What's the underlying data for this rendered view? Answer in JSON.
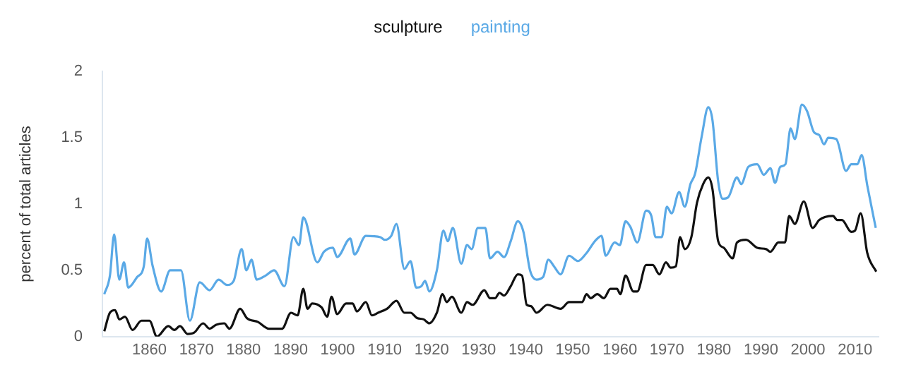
{
  "chart_data": {
    "type": "line",
    "ylabel": "percent of total articles",
    "series": [
      {
        "name": "sculpture",
        "color": "#111111",
        "x": [
          1850.4,
          1851.6,
          1852.7,
          1853.6,
          1854.8,
          1856.4,
          1858.3,
          1860,
          1861.6,
          1864,
          1865.3,
          1866.5,
          1868.1,
          1869.5,
          1871.4,
          1872.8,
          1874.2,
          1875.9,
          1877,
          1879.3,
          1880.7,
          1883.1,
          1885.4,
          1888.2,
          1890.1,
          1891.5,
          1892.7,
          1893.6,
          1894.6,
          1896.6,
          1897.8,
          1898.7,
          1899.9,
          1901.8,
          1903.2,
          1904.1,
          1906,
          1907.3,
          1908.6,
          1910.5,
          1912.5,
          1914.2,
          1915.5,
          1916.9,
          1918.3,
          1919.5,
          1921.1,
          1922.3,
          1923.2,
          1924.3,
          1926.3,
          1927.5,
          1928.7,
          1931.2,
          1932.4,
          1933.5,
          1934.4,
          1935.4,
          1936.8,
          1938.3,
          1939.2,
          1940.2,
          1941.1,
          1942.3,
          1944.6,
          1947.4,
          1949.2,
          1952,
          1952.9,
          1953.8,
          1955.2,
          1956.6,
          1958,
          1959.4,
          1960.1,
          1961.2,
          1962.9,
          1963.7,
          1965.6,
          1967,
          1968.4,
          1969.8,
          1970.8,
          1971.9,
          1972.8,
          1973.8,
          1975.2,
          1976.4,
          1977.7,
          1978.8,
          1979.7,
          1980.9,
          1982.1,
          1984,
          1984.9,
          1986.8,
          1989.2,
          1991.1,
          1992,
          1993.7,
          1995.1,
          1996,
          1997.2,
          1999.1,
          2001,
          2002.4,
          2005.3,
          2006.2,
          2007.2,
          2009.2,
          2010,
          2011.2,
          2012.6,
          2014.5
        ],
        "values": [
          0.04,
          0.18,
          0.2,
          0.13,
          0.15,
          0.05,
          0.12,
          0.12,
          0.0,
          0.08,
          0.05,
          0.08,
          0.02,
          0.03,
          0.1,
          0.06,
          0.09,
          0.1,
          0.06,
          0.21,
          0.14,
          0.11,
          0.06,
          0.06,
          0.18,
          0.16,
          0.36,
          0.21,
          0.25,
          0.22,
          0.15,
          0.3,
          0.17,
          0.25,
          0.25,
          0.19,
          0.26,
          0.16,
          0.18,
          0.21,
          0.27,
          0.18,
          0.18,
          0.14,
          0.13,
          0.1,
          0.18,
          0.32,
          0.26,
          0.3,
          0.18,
          0.26,
          0.24,
          0.35,
          0.29,
          0.29,
          0.33,
          0.31,
          0.38,
          0.47,
          0.46,
          0.24,
          0.23,
          0.18,
          0.24,
          0.21,
          0.26,
          0.26,
          0.32,
          0.29,
          0.32,
          0.29,
          0.36,
          0.36,
          0.32,
          0.46,
          0.34,
          0.34,
          0.54,
          0.54,
          0.47,
          0.56,
          0.52,
          0.53,
          0.75,
          0.66,
          0.75,
          1.01,
          1.15,
          1.2,
          1.11,
          0.72,
          0.67,
          0.59,
          0.71,
          0.73,
          0.67,
          0.66,
          0.64,
          0.71,
          0.71,
          0.91,
          0.85,
          1.02,
          0.82,
          0.88,
          0.91,
          0.88,
          0.88,
          0.79,
          0.8,
          0.93,
          0.63,
          0.49
        ]
      },
      {
        "name": "painting",
        "color": "#5aa9e6",
        "x": [
          1850.4,
          1851.6,
          1852.5,
          1853.6,
          1854.6,
          1855.5,
          1857.4,
          1858.8,
          1859.5,
          1860.7,
          1862.5,
          1864.4,
          1866.7,
          1868.6,
          1870.7,
          1872.8,
          1874.7,
          1876.5,
          1877.9,
          1879.6,
          1880.6,
          1881.7,
          1882.8,
          1884.7,
          1886.5,
          1888.7,
          1890.6,
          1891.8,
          1892.7,
          1895.7,
          1897.1,
          1899,
          1899.9,
          1902.7,
          1903.6,
          1906,
          1909.1,
          1910,
          1911.4,
          1912.5,
          1914.2,
          1915.5,
          1916.7,
          1917.8,
          1918.6,
          1919.5,
          1921.1,
          1922.5,
          1923.4,
          1924.5,
          1926.3,
          1927.5,
          1928.5,
          1929.8,
          1931.4,
          1932.4,
          1934,
          1935.4,
          1936.8,
          1938.3,
          1939.5,
          1940.9,
          1942.3,
          1943.7,
          1944.8,
          1946,
          1947.4,
          1949.2,
          1951.1,
          1952.9,
          1954.7,
          1956.1,
          1957,
          1958.9,
          1960,
          1961.2,
          1962.2,
          1963.7,
          1965.6,
          1966.7,
          1967.6,
          1968.9,
          1970,
          1971,
          1972.6,
          1973.8,
          1975,
          1976,
          1977.4,
          1978.8,
          1979.7,
          1980.9,
          1981.8,
          1983,
          1984.9,
          1985.8,
          1987.3,
          1989.2,
          1990.6,
          1992,
          1993,
          1994.1,
          1995.2,
          1996.3,
          1997.2,
          1998.7,
          1999.8,
          2001.3,
          2002.4,
          2003.4,
          2004.3,
          2006,
          2008.1,
          2009.2,
          2010.5,
          2011.4,
          2012.6,
          2014.4
        ],
        "values": [
          0.32,
          0.46,
          0.77,
          0.43,
          0.56,
          0.37,
          0.45,
          0.53,
          0.74,
          0.53,
          0.34,
          0.5,
          0.5,
          0.12,
          0.41,
          0.35,
          0.43,
          0.39,
          0.42,
          0.66,
          0.5,
          0.58,
          0.43,
          0.46,
          0.5,
          0.38,
          0.75,
          0.69,
          0.9,
          0.56,
          0.64,
          0.67,
          0.6,
          0.74,
          0.62,
          0.76,
          0.75,
          0.73,
          0.76,
          0.85,
          0.51,
          0.57,
          0.37,
          0.38,
          0.42,
          0.34,
          0.5,
          0.8,
          0.72,
          0.82,
          0.55,
          0.69,
          0.66,
          0.82,
          0.82,
          0.59,
          0.64,
          0.6,
          0.72,
          0.87,
          0.79,
          0.5,
          0.43,
          0.45,
          0.58,
          0.53,
          0.47,
          0.61,
          0.57,
          0.63,
          0.72,
          0.76,
          0.61,
          0.71,
          0.69,
          0.87,
          0.83,
          0.71,
          0.95,
          0.91,
          0.75,
          0.75,
          0.98,
          0.93,
          1.09,
          0.98,
          1.15,
          1.23,
          1.51,
          1.73,
          1.63,
          1.17,
          1.04,
          1.05,
          1.2,
          1.15,
          1.28,
          1.3,
          1.22,
          1.27,
          1.16,
          1.28,
          1.3,
          1.57,
          1.49,
          1.75,
          1.7,
          1.54,
          1.52,
          1.45,
          1.5,
          1.49,
          1.25,
          1.3,
          1.3,
          1.37,
          1.14,
          0.82
        ]
      }
    ],
    "xlim": [
      1850,
      2015
    ],
    "xticks": [
      1860,
      1870,
      1880,
      1890,
      1900,
      1910,
      1920,
      1930,
      1940,
      1950,
      1960,
      1970,
      1980,
      1990,
      2000,
      2010
    ],
    "ylim": [
      0,
      2
    ],
    "yticks": [
      0,
      0.5,
      1,
      1.5,
      2
    ],
    "grid": false,
    "legend": "top",
    "marker": "none",
    "line_style": "solid"
  }
}
